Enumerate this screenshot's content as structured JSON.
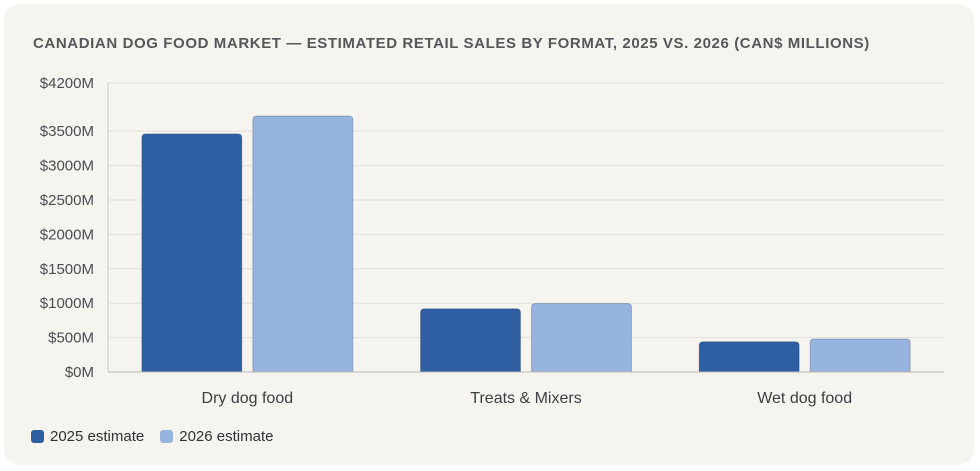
{
  "chart_data": {
    "type": "bar",
    "title": "CANADIAN DOG FOOD MARKET — ESTIMATED RETAIL SALES BY FORMAT, 2025 VS. 2026 (CAN$ MILLIONS)",
    "categories": [
      "Dry dog food",
      "Treats & Mixers",
      "Wet dog food"
    ],
    "series": [
      {
        "name": "2025 estimate",
        "color": "#2f5fa3",
        "values": [
          3460,
          920,
          440
        ]
      },
      {
        "name": "2026 estimate",
        "color": "#96b4de",
        "values": [
          3720,
          995,
          480
        ]
      }
    ],
    "yticks": [
      0,
      500,
      1000,
      1500,
      2000,
      2500,
      3000,
      3500,
      4200
    ],
    "ytick_labels": [
      "$0M",
      "$500M",
      "$1000M",
      "$1500M",
      "$2000M",
      "$2500M",
      "$3000M",
      "$3500M",
      "$4200M"
    ],
    "ylim": [
      0,
      4200
    ],
    "xlabel": "",
    "ylabel": "",
    "grid": true,
    "legend_position": "bottom-left"
  }
}
